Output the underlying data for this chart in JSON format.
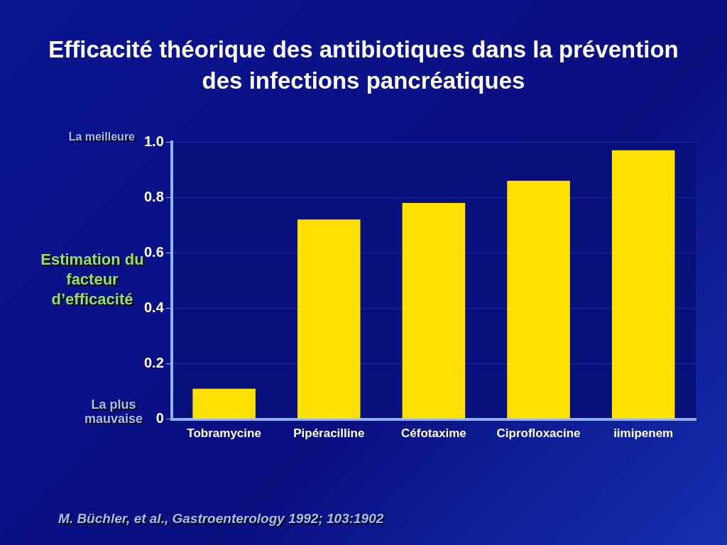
{
  "chart_data": {
    "type": "bar",
    "title": "Efficacité théorique des antibiotiques dans la prévention des infections pancréatiques",
    "ylabel": "Estimation du facteur d’efficacité",
    "categories": [
      "Tobramycine",
      "Pipéracilline",
      "Céfotaxime",
      "Ciprofloxacine",
      "iimipenem"
    ],
    "values": [
      0.11,
      0.72,
      0.78,
      0.86,
      0.97
    ],
    "color": "#ffe000",
    "ylim": [
      0,
      1
    ],
    "yticks": [
      0,
      0.2,
      0.4,
      0.6,
      0.8,
      {
        "value": 1,
        "label": "1.0"
      }
    ],
    "grid": "y",
    "annotations": [
      "La meilleure",
      "La plus mauvaise",
      "M. Büchler, et al., Gastroenterology 1992; 103:1902"
    ]
  }
}
